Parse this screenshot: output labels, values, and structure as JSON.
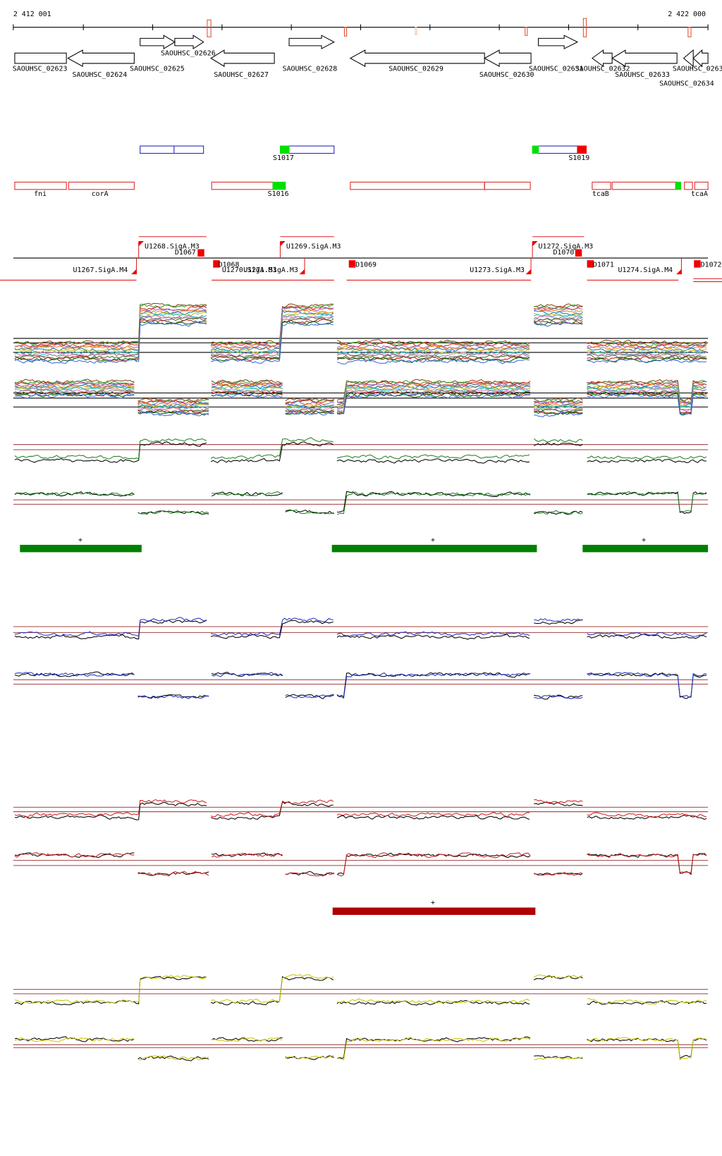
{
  "ruler": {
    "start": "2 412 001",
    "end": "2 422 000"
  },
  "genes": [
    "SAOUHSC_02623",
    "SAOUHSC_02624",
    "SAOUHSC_02625",
    "SAOUHSC_02626",
    "SAOUHSC_02627",
    "SAOUHSC_02628",
    "SAOUHSC_02629",
    "SAOUHSC_02630",
    "SAOUHSC_02631",
    "SAOUHSC_02632",
    "SAOUHSC_02633",
    "SAOUHSC_02634",
    "SAOUHSC_0263"
  ],
  "segments": [
    "S1017",
    "S1019",
    "fni",
    "corA",
    "S1016",
    "tcaB",
    "tcaA"
  ],
  "promoters": [
    "U1267.SigA.M4",
    "U1268.SigA.M3",
    "D1067",
    "D1068",
    "U1270.SigA.M3",
    "U1271.SigA.M3",
    "U1269.SigA.M3",
    "D1069",
    "U1273.SigA.M3",
    "U1272.SigA.M3",
    "D1070",
    "D1071",
    "U1274.SigA.M4",
    "D1072"
  ],
  "green_marks": [
    "+",
    "+",
    "+"
  ],
  "red_marks": [
    "+"
  ]
}
